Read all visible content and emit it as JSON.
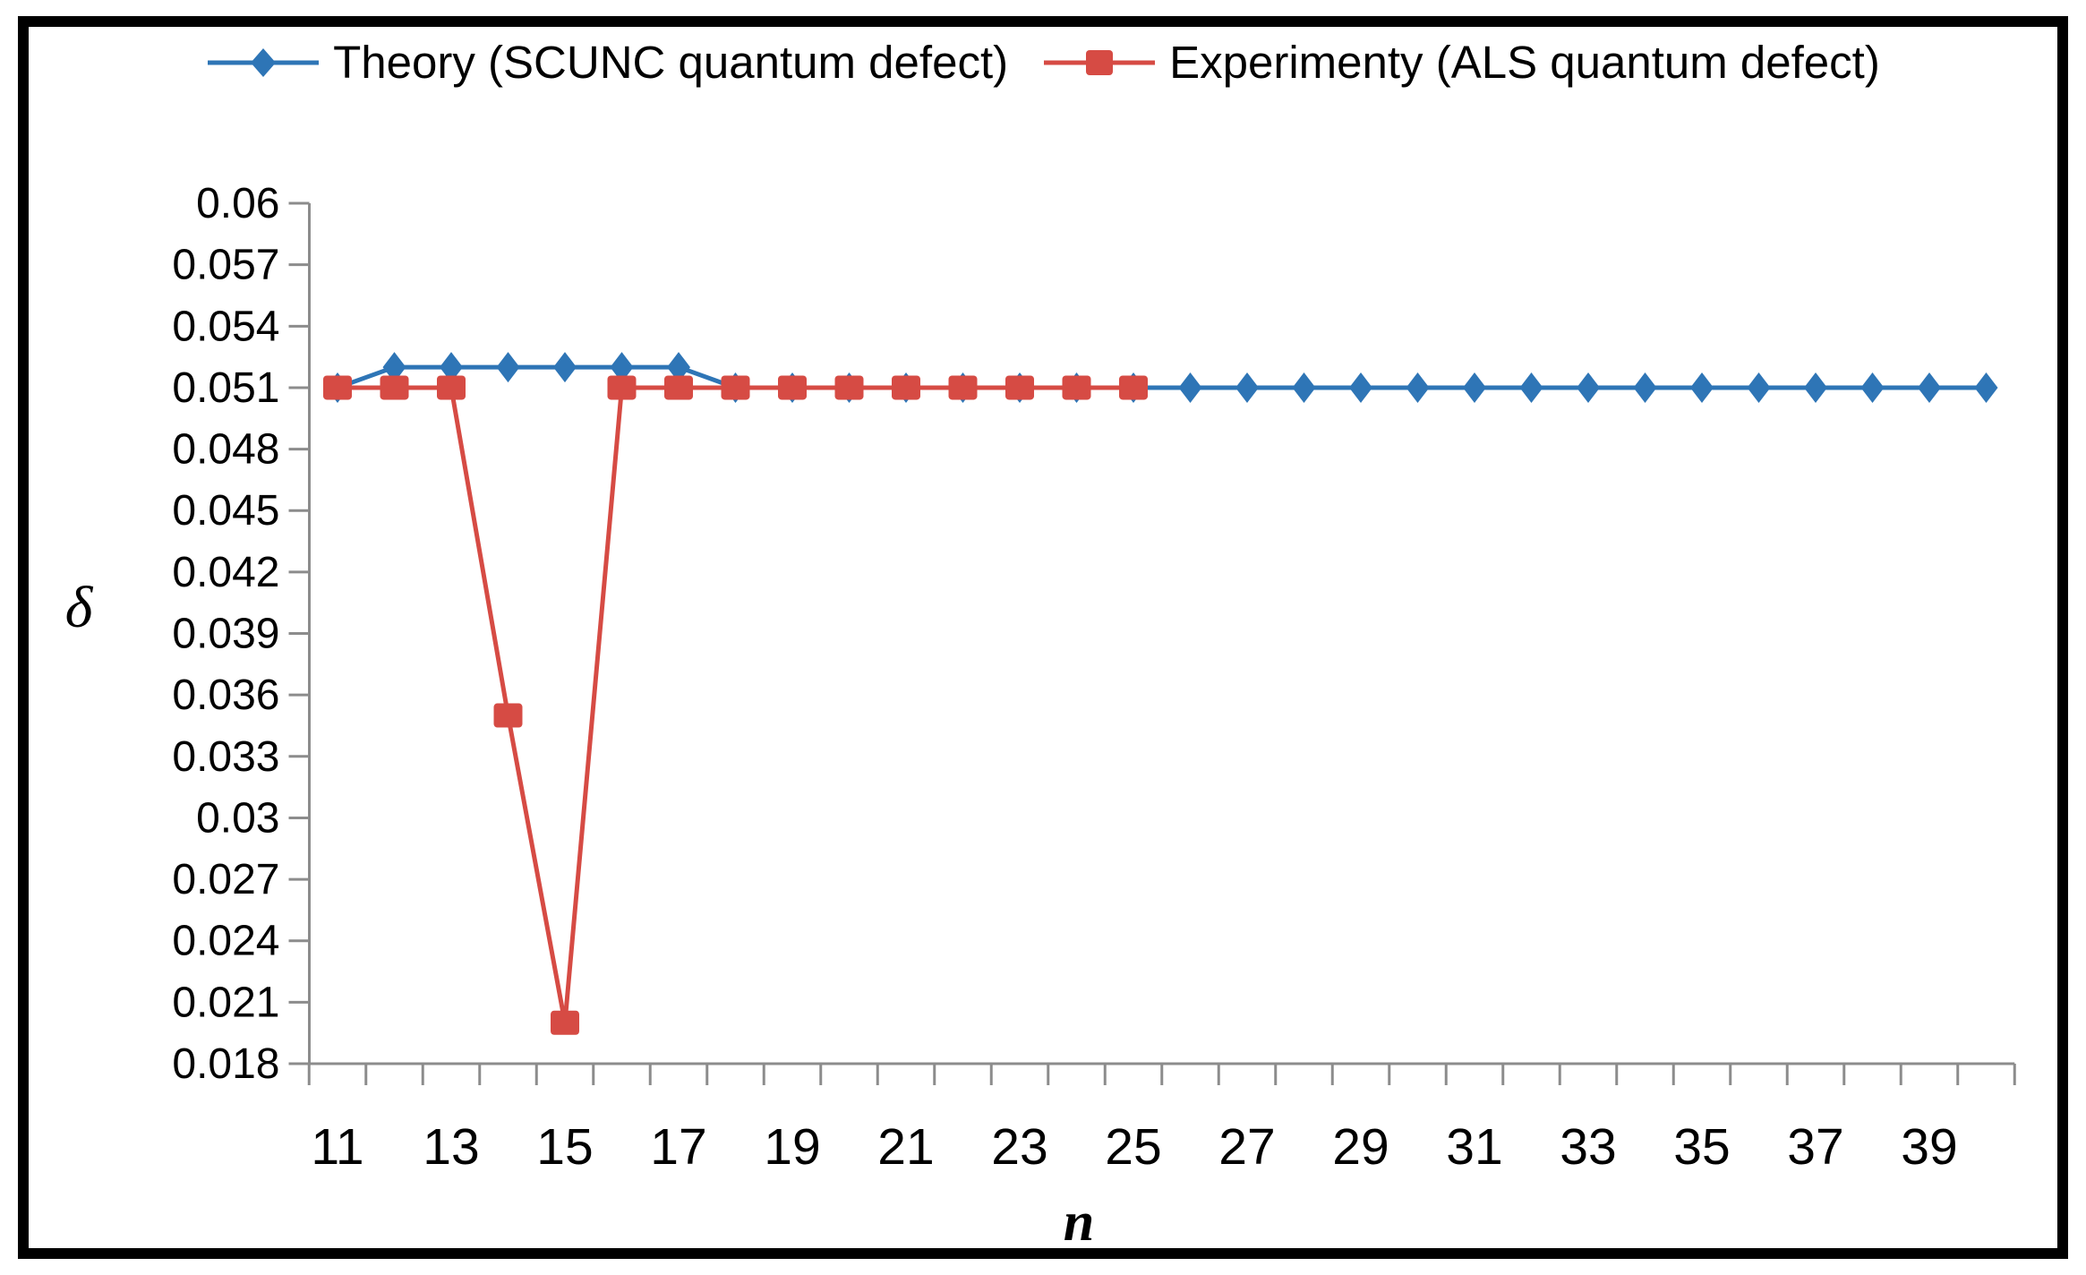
{
  "legend": [
    {
      "label": "Theory (SCUNC quantum defect)",
      "color": "#2E75B6",
      "marker": "diamond"
    },
    {
      "label": "Experimenty (ALS quantum defect)",
      "color": "#D64B44",
      "marker": "square"
    }
  ],
  "chart_data": {
    "type": "line",
    "title": "",
    "xlabel": "n",
    "ylabel": "δ",
    "xlim": [
      10.5,
      40.5
    ],
    "ylim": [
      0.018,
      0.06
    ],
    "grid": false,
    "legend_position": "top-center",
    "x_tick_labels": [
      "11",
      "13",
      "15",
      "17",
      "19",
      "21",
      "23",
      "25",
      "27",
      "29",
      "31",
      "33",
      "35",
      "37",
      "39"
    ],
    "x_minor_tick_step": 1,
    "y_tick_labels": [
      "0.018",
      "0.021",
      "0.024",
      "0.027",
      "0.03",
      "0.033",
      "0.036",
      "0.039",
      "0.042",
      "0.045",
      "0.048",
      "0.051",
      "0.054",
      "0.057",
      "0.06"
    ],
    "series": [
      {
        "name": "Theory (SCUNC quantum defect)",
        "color": "#2E75B6",
        "marker": "diamond",
        "x": [
          11,
          12,
          13,
          14,
          15,
          16,
          17,
          18,
          19,
          20,
          21,
          22,
          23,
          24,
          25,
          26,
          27,
          28,
          29,
          30,
          31,
          32,
          33,
          34,
          35,
          36,
          37,
          38,
          39,
          40
        ],
        "y": [
          0.051,
          0.052,
          0.052,
          0.052,
          0.052,
          0.052,
          0.052,
          0.051,
          0.051,
          0.051,
          0.051,
          0.051,
          0.051,
          0.051,
          0.051,
          0.051,
          0.051,
          0.051,
          0.051,
          0.051,
          0.051,
          0.051,
          0.051,
          0.051,
          0.051,
          0.051,
          0.051,
          0.051,
          0.051,
          0.051
        ]
      },
      {
        "name": "Experimenty (ALS quantum defect)",
        "color": "#D64B44",
        "marker": "square",
        "x": [
          11,
          12,
          13,
          14,
          15,
          16,
          17,
          18,
          19,
          20,
          21,
          22,
          23,
          24,
          25
        ],
        "y": [
          0.051,
          0.051,
          0.051,
          0.035,
          0.02,
          0.051,
          0.051,
          0.051,
          0.051,
          0.051,
          0.051,
          0.051,
          0.051,
          0.051,
          0.051
        ]
      }
    ],
    "axis_color": "#8C8C8C",
    "text_color": "#000000"
  }
}
